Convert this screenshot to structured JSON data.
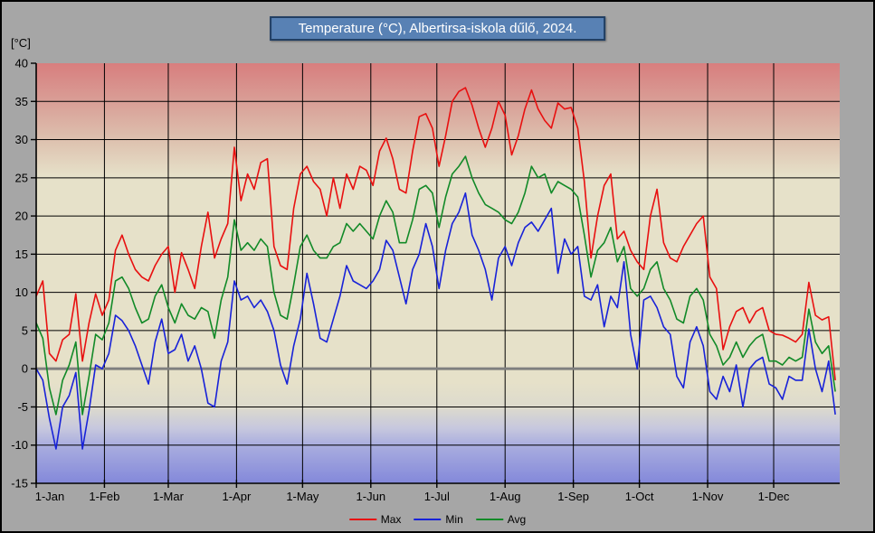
{
  "page": {
    "background": "#a6a6a6",
    "border_color": "#000000"
  },
  "title_style": {
    "fill": "#5881b4",
    "border": "#223f63",
    "text": "#ffffff"
  },
  "chart_data": {
    "type": "line",
    "title": "Temperature (°C), Albertirsa-iskola dűlő, 2024.",
    "ylabel": "[°C]",
    "ylim": [
      -15,
      40
    ],
    "ytick_step": 5,
    "x_range": [
      1,
      366
    ],
    "x_unit": "day_of_year",
    "grid": true,
    "grid_color": "#000000",
    "zero_line": {
      "color": "#7f7f7f",
      "width": 3
    },
    "plot_gradient": [
      {
        "offset": 0.0,
        "color": "#d87e7e"
      },
      {
        "offset": 0.09,
        "color": "#d99e96"
      },
      {
        "offset": 0.18,
        "color": "#ddc0ae"
      },
      {
        "offset": 0.27,
        "color": "#e6e1c9"
      },
      {
        "offset": 0.76,
        "color": "#e6e1c9"
      },
      {
        "offset": 0.82,
        "color": "#dcdacd"
      },
      {
        "offset": 0.87,
        "color": "#c6c7de"
      },
      {
        "offset": 0.91,
        "color": "#a9addf"
      },
      {
        "offset": 1.0,
        "color": "#8388da"
      }
    ],
    "month_ticks": [
      {
        "label": "1-Jan",
        "day": 1
      },
      {
        "label": "1-Feb",
        "day": 32
      },
      {
        "label": "1-Mar",
        "day": 61
      },
      {
        "label": "1-Apr",
        "day": 92
      },
      {
        "label": "1-May",
        "day": 122
      },
      {
        "label": "1-Jun",
        "day": 153
      },
      {
        "label": "1-Jul",
        "day": 183
      },
      {
        "label": "1-Aug",
        "day": 214
      },
      {
        "label": "1-Sep",
        "day": 245
      },
      {
        "label": "1-Oct",
        "day": 275
      },
      {
        "label": "1-Nov",
        "day": 306
      },
      {
        "label": "1-Dec",
        "day": 336
      }
    ],
    "sample_day_start": 1,
    "sample_day_step": 3,
    "legend_position": "bottom-center",
    "series": [
      {
        "name": "Max",
        "color": "#e81010",
        "values": [
          9.5,
          11.5,
          2.0,
          1.0,
          3.8,
          4.5,
          9.8,
          1.0,
          6.0,
          9.8,
          7.0,
          9.0,
          15.5,
          17.5,
          15.0,
          13.0,
          12.0,
          11.5,
          13.5,
          15.0,
          16.0,
          10.0,
          15.2,
          13.0,
          10.5,
          16.0,
          20.5,
          14.5,
          17.0,
          19.0,
          29.0,
          22.0,
          25.5,
          23.5,
          27.0,
          27.5,
          16.0,
          13.5,
          13.0,
          21.0,
          25.5,
          26.5,
          24.5,
          23.5,
          20.0,
          25.0,
          21.0,
          25.5,
          23.5,
          26.5,
          26.0,
          24.0,
          28.5,
          30.2,
          27.5,
          23.5,
          23.0,
          28.5,
          33.0,
          33.4,
          31.5,
          26.5,
          30.5,
          35.0,
          36.3,
          36.8,
          34.5,
          31.5,
          29.0,
          31.5,
          35.0,
          33.2,
          28.0,
          30.5,
          34.0,
          36.5,
          34.0,
          32.5,
          31.5,
          34.8,
          34.0,
          34.2,
          31.5,
          24.5,
          14.5,
          20.0,
          24.0,
          25.5,
          17.0,
          18.0,
          15.5,
          14.0,
          13.0,
          20.0,
          23.5,
          16.5,
          14.5,
          14.0,
          16.0,
          17.5,
          19.0,
          20.0,
          12.0,
          10.5,
          2.5,
          5.5,
          7.5,
          8.0,
          6.0,
          7.5,
          8.0,
          5.0,
          4.5,
          4.4,
          4.0,
          3.5,
          4.5,
          11.3,
          7.0,
          6.4,
          6.8,
          -1.5
        ]
      },
      {
        "name": "Min",
        "color": "#1822d8",
        "values": [
          0.0,
          -1.5,
          -6.5,
          -10.5,
          -5.0,
          -3.5,
          -0.5,
          -10.5,
          -5.5,
          0.5,
          0.0,
          2.0,
          7.0,
          6.3,
          5.0,
          3.0,
          0.5,
          -2.0,
          3.5,
          6.5,
          2.0,
          2.5,
          4.5,
          1.0,
          3.0,
          0.0,
          -4.5,
          -5.0,
          1.0,
          3.5,
          11.5,
          9.0,
          9.5,
          8.0,
          9.0,
          7.5,
          5.0,
          0.5,
          -2.0,
          3.0,
          6.5,
          12.5,
          8.5,
          4.0,
          3.5,
          6.5,
          9.5,
          13.5,
          11.5,
          11.0,
          10.5,
          11.5,
          13.0,
          16.8,
          15.5,
          12.0,
          8.5,
          13.0,
          15.0,
          19.0,
          16.0,
          10.5,
          15.5,
          19.0,
          20.5,
          23.0,
          17.5,
          15.5,
          13.0,
          9.0,
          14.5,
          16.0,
          13.5,
          16.5,
          18.5,
          19.2,
          18.0,
          19.5,
          21.0,
          12.5,
          17.0,
          15.0,
          16.0,
          9.5,
          9.0,
          11.0,
          5.5,
          9.5,
          8.0,
          14.0,
          4.5,
          0.0,
          9.0,
          9.5,
          8.0,
          5.5,
          4.5,
          -1.0,
          -2.5,
          3.5,
          5.5,
          3.0,
          -3.0,
          -4.0,
          -1.0,
          -3.0,
          0.5,
          -5.0,
          0.0,
          1.0,
          1.5,
          -2.0,
          -2.5,
          -4.0,
          -1.0,
          -1.5,
          -1.5,
          5.2,
          0.0,
          -3.0,
          1.0,
          -6.0
        ]
      },
      {
        "name": "Avg",
        "color": "#128a28",
        "values": [
          6.0,
          4.0,
          -2.5,
          -6.0,
          -1.5,
          0.5,
          3.5,
          -6.0,
          -1.0,
          4.5,
          3.8,
          6.0,
          11.5,
          12.0,
          10.5,
          8.0,
          6.0,
          6.5,
          9.5,
          11.0,
          8.0,
          6.0,
          8.5,
          7.0,
          6.5,
          8.0,
          7.5,
          4.0,
          9.0,
          12.0,
          19.5,
          15.5,
          16.5,
          15.5,
          17.0,
          16.0,
          10.0,
          7.0,
          6.5,
          11.0,
          16.0,
          17.5,
          15.5,
          14.5,
          14.5,
          16.0,
          16.5,
          19.0,
          18.0,
          19.0,
          18.0,
          17.0,
          20.0,
          22.0,
          20.5,
          16.5,
          16.5,
          19.5,
          23.5,
          24.0,
          23.0,
          18.5,
          22.5,
          25.5,
          26.5,
          27.8,
          25.0,
          23.0,
          21.5,
          21.0,
          20.5,
          19.5,
          19.0,
          20.5,
          23.0,
          26.5,
          25.0,
          25.5,
          23.0,
          24.5,
          24.0,
          23.5,
          22.5,
          17.5,
          12.0,
          15.5,
          16.5,
          18.5,
          14.0,
          16.0,
          10.5,
          9.5,
          10.5,
          13.0,
          14.0,
          10.5,
          9.0,
          6.5,
          6.0,
          9.5,
          10.5,
          9.0,
          4.5,
          3.0,
          0.5,
          1.5,
          3.5,
          1.5,
          3.0,
          4.0,
          4.5,
          1.0,
          1.0,
          0.5,
          1.5,
          1.0,
          1.5,
          7.8,
          3.5,
          2.0,
          3.0,
          -3.0
        ]
      }
    ]
  }
}
